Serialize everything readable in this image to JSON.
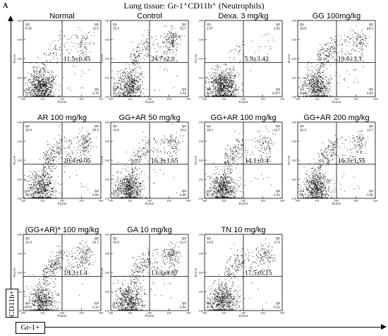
{
  "figure": {
    "panel_label": "A",
    "title": "Lung  tissue: Gr-1⁺CD11b⁺ (Neutrophils)",
    "y_axis_label": "CD11b+",
    "x_axis_label": "Gr-1+"
  },
  "chart_data": [
    {
      "type": "scatter",
      "title": "Normal",
      "xlabel": "FL3-H",
      "ylabel": "FL1-H",
      "xscale": "log",
      "yscale": "log",
      "xlim": [
        1,
        10000
      ],
      "ylim": [
        1,
        10000
      ],
      "quadrants": {
        "Q1": "6.16",
        "Q2": "11.0",
        "Q3": "0.70",
        "Q4": "82.1"
      },
      "annotation": "11.5±0.45"
    },
    {
      "type": "scatter",
      "title": "Control",
      "xlabel": "FL3-H",
      "ylabel": "FL1-H",
      "xscale": "log",
      "yscale": "log",
      "xlim": [
        1,
        10000
      ],
      "ylim": [
        1,
        10000
      ],
      "quadrants": {
        "Q1": "15.3",
        "Q2": "22.7",
        "Q3": "0.42",
        "Q4": "61.6"
      },
      "annotation": "24.7±2.0"
    },
    {
      "type": "scatter",
      "title": "Dexa. 3 mg/kg",
      "xlabel": "FL3-H",
      "ylabel": "FL1-H",
      "xscale": "log",
      "yscale": "log",
      "xlim": [
        1,
        10000
      ],
      "ylim": [
        1,
        10000
      ],
      "quadrants": {
        "Q1": "2.57",
        "Q2": "2.52",
        "Q3": "0.077",
        "Q4": "94.8"
      },
      "annotation": "5.9±3.42"
    },
    {
      "type": "scatter",
      "title": "GG 100mg/kg",
      "xlabel": "FL3-H",
      "ylabel": "FL1-H",
      "xscale": "log",
      "yscale": "log",
      "xlim": [
        1,
        10000
      ],
      "ylim": [
        1,
        10000
      ],
      "quadrants": {
        "Q1": "18.8",
        "Q2": "16.3",
        "Q3": "0.83",
        "Q4": "64.0"
      },
      "annotation": "19.6±3.3"
    },
    {
      "type": "scatter",
      "title": "AR 100 mg/kg",
      "xlabel": "FL3-H",
      "ylabel": "FL1-H",
      "xscale": "log",
      "yscale": "log",
      "xlim": [
        1,
        10000
      ],
      "ylim": [
        1,
        10000
      ],
      "quadrants": {
        "Q1": "19.8",
        "Q2": "20.3",
        "Q3": "0.50",
        "Q4": "59.6"
      },
      "annotation": "20.4±0.05"
    },
    {
      "type": "scatter",
      "title": "GG+AR 50 mg/kg",
      "xlabel": "FL3-H",
      "ylabel": "FL1-H",
      "xscale": "log",
      "yscale": "log",
      "xlim": [
        1,
        10000
      ],
      "ylim": [
        1,
        10000
      ],
      "quadrants": {
        "Q1": "12.6",
        "Q2": "14.8",
        "Q3": "0.45",
        "Q4": "72.3"
      },
      "annotation": "16.3±1.65"
    },
    {
      "type": "scatter",
      "title": "GG+AR 100 mg/kg",
      "xlabel": "FL3-H",
      "ylabel": "FL1-H",
      "xscale": "log",
      "yscale": "log",
      "xlim": [
        1,
        10000
      ],
      "ylim": [
        1,
        10000
      ],
      "quadrants": {
        "Q1": "18.1",
        "Q2": "13.7",
        "Q3": "0.42",
        "Q4": "67.8"
      },
      "annotation": "14.1±0.4"
    },
    {
      "type": "scatter",
      "title": "GG+AR 200 mg/kg",
      "xlabel": "FL3-H",
      "ylabel": "FL1-H",
      "xscale": "log",
      "yscale": "log",
      "xlim": [
        1,
        10000
      ],
      "ylim": [
        1,
        10000
      ],
      "quadrants": {
        "Q1": "16.2",
        "Q2": "14.7",
        "Q3": "0.46",
        "Q4": "68.7"
      },
      "annotation": "16.3±1.55"
    },
    {
      "type": "scatter",
      "title": "(GG+AR)* 100 mg/kg",
      "xlabel": "FL3-H",
      "ylabel": "FL1-H",
      "xscale": "log",
      "yscale": "log",
      "xlim": [
        1,
        10000
      ],
      "ylim": [
        1,
        10000
      ],
      "quadrants": {
        "Q1": "21.6",
        "Q2": "20.7",
        "Q3": "0.12",
        "Q4": "57.6"
      },
      "annotation": "19.3±1.4"
    },
    {
      "type": "scatter",
      "title": "GA 10 mg/kg",
      "xlabel": "FL3-H",
      "ylabel": "FL1-H",
      "xscale": "log",
      "yscale": "log",
      "xlim": [
        1,
        10000
      ],
      "ylim": [
        1,
        10000
      ],
      "quadrants": {
        "Q1": "15.8",
        "Q2": "21.4",
        "Q3": "0.62",
        "Q4": "62.2"
      },
      "annotation": "13.3±8.07"
    },
    {
      "type": "scatter",
      "title": "TN 10 mg/kg",
      "xlabel": "FL3-H",
      "ylabel": "FL1-H",
      "xscale": "log",
      "yscale": "log",
      "xlim": [
        1,
        10000
      ],
      "ylim": [
        1,
        10000
      ],
      "quadrants": {
        "Q1": "14.8",
        "Q2": "17.6",
        "Q3": "0.22",
        "Q4": "67.4"
      },
      "annotation": "17.5±0.15"
    }
  ]
}
